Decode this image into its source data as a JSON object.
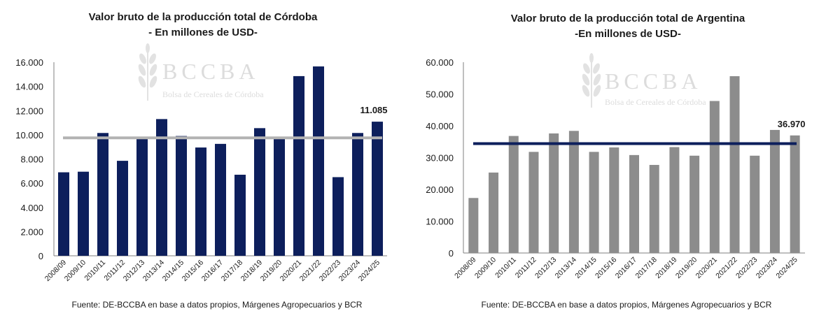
{
  "watermark": {
    "brand": "BCCBA",
    "subtitle": "Bolsa de Cereales de Córdoba"
  },
  "chart_data": [
    {
      "type": "bar",
      "title": "Valor bruto de la producción total de Córdoba",
      "subtitle": "- En millones de USD-",
      "categories": [
        "2008/09",
        "2009/10",
        "2010/11",
        "2011/12",
        "2012/13",
        "2013/14",
        "2014/15",
        "2015/16",
        "2016/17",
        "2017/18",
        "2018/19",
        "2019/20",
        "2020/21",
        "2021/22",
        "2022/23",
        "2023/24",
        "2024/25"
      ],
      "values": [
        6900,
        6950,
        10150,
        7850,
        9700,
        11300,
        9900,
        8950,
        9250,
        6700,
        10550,
        9700,
        14850,
        15650,
        6500,
        10150,
        11085
      ],
      "average": 9750,
      "yticks": [
        "0",
        "2.000",
        "4.000",
        "6.000",
        "8.000",
        "10.000",
        "12.000",
        "14.000",
        "16.000"
      ],
      "ylim": [
        0,
        16000
      ],
      "last_label": "11.085",
      "bar_color": "#0d1f5c",
      "avg_color": "#b3b3b3",
      "source": "Fuente: DE-BCCBA en base a datos propios, Márgenes Agropecuarios y BCR"
    },
    {
      "type": "bar",
      "title": "Valor bruto de la producción total de Argentina",
      "subtitle": "-En millones de USD-",
      "categories": [
        "2008/09",
        "2009/10",
        "2010/11",
        "2011/12",
        "2012/13",
        "2013/14",
        "2014/15",
        "2015/16",
        "2016/17",
        "2017/18",
        "2018/19",
        "2019/20",
        "2020/21",
        "2021/22",
        "2022/23",
        "2023/24",
        "2024/25"
      ],
      "values": [
        17300,
        25300,
        36800,
        31800,
        37600,
        38400,
        31800,
        33200,
        30800,
        27700,
        33300,
        30600,
        47800,
        55600,
        30600,
        38700,
        36970
      ],
      "average": 34400,
      "yticks": [
        "0",
        "10.000",
        "20.000",
        "30.000",
        "40.000",
        "50.000",
        "60.000"
      ],
      "ylim": [
        0,
        60000
      ],
      "last_label": "36.970",
      "bar_color": "#8c8c8c",
      "avg_color": "#0d1f5c",
      "source": "Fuente: DE-BCCBA en base a datos propios, Márgenes Agropecuarios y BCR"
    }
  ]
}
